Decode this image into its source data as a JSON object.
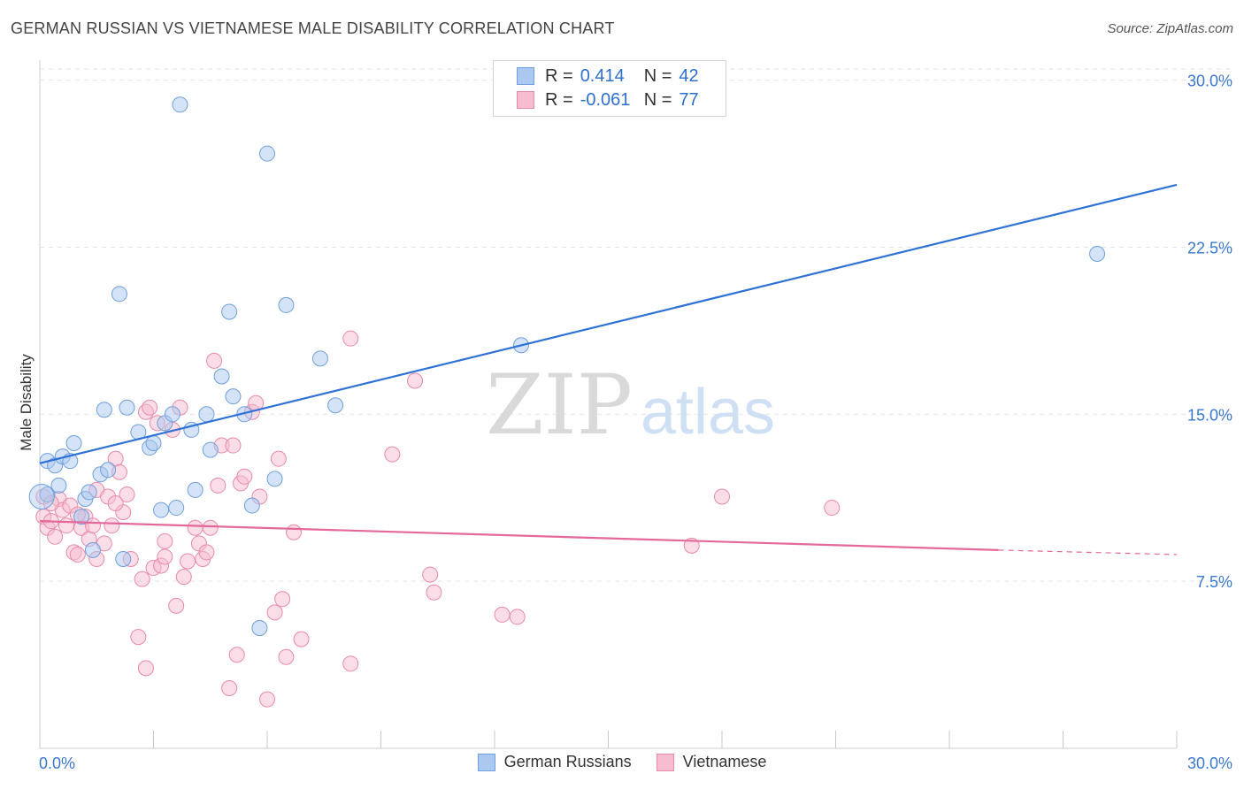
{
  "header": {
    "title": "GERMAN RUSSIAN VS VIETNAMESE MALE DISABILITY CORRELATION CHART",
    "source": "Source: ZipAtlas.com"
  },
  "watermark": {
    "zip": "ZIP",
    "atlas": "atlas"
  },
  "colors": {
    "blue_fill": "#aac8f0",
    "blue_stroke": "#6f9fdc",
    "blue_line": "#2f72d6",
    "pink_fill": "#f8bcd0",
    "pink_stroke": "#e88aaa",
    "pink_line": "#e4689a",
    "tick_label": "#3a78cf",
    "grid": "#e3e3e3"
  },
  "legend": {
    "rows": [
      {
        "r_label": "R =",
        "r_value": "0.414",
        "n_label": "N =",
        "n_value": "42"
      },
      {
        "r_label": "R =",
        "r_value": "-0.061",
        "n_label": "N =",
        "n_value": "77"
      }
    ]
  },
  "bottom_legend": {
    "series1": "German Russians",
    "series2": "Vietnamese"
  },
  "chart_data": {
    "type": "scatter",
    "title": "GERMAN RUSSIAN VS VIETNAMESE MALE DISABILITY CORRELATION CHART",
    "xlabel": "",
    "ylabel": "Male Disability",
    "xlim": [
      0,
      30
    ],
    "ylim": [
      0,
      30.5
    ],
    "x_tick_labels": [
      "0.0%",
      "30.0%"
    ],
    "y_ticks": [
      7.5,
      15.0,
      22.5,
      30.0
    ],
    "y_tick_labels": [
      "7.5%",
      "15.0%",
      "22.5%",
      "30.0%"
    ],
    "series": [
      {
        "name": "German Russians",
        "r": 0.414,
        "n": 42,
        "trend": {
          "x0": 0,
          "y0": 12.8,
          "x1": 30,
          "y1": 25.3
        },
        "points": [
          [
            0.2,
            11.4
          ],
          [
            0.2,
            12.9
          ],
          [
            0.4,
            12.7
          ],
          [
            0.5,
            11.8
          ],
          [
            0.6,
            13.1
          ],
          [
            0.8,
            12.9
          ],
          [
            0.9,
            13.7
          ],
          [
            1.1,
            10.4
          ],
          [
            1.2,
            11.2
          ],
          [
            1.3,
            11.5
          ],
          [
            1.4,
            8.9
          ],
          [
            1.6,
            12.3
          ],
          [
            1.7,
            15.2
          ],
          [
            1.8,
            12.5
          ],
          [
            2.1,
            20.4
          ],
          [
            2.2,
            8.5
          ],
          [
            2.3,
            15.3
          ],
          [
            2.6,
            14.2
          ],
          [
            2.9,
            13.5
          ],
          [
            3.0,
            13.7
          ],
          [
            3.2,
            10.7
          ],
          [
            3.3,
            14.6
          ],
          [
            3.5,
            15.0
          ],
          [
            3.6,
            10.8
          ],
          [
            3.7,
            28.9
          ],
          [
            4.0,
            14.3
          ],
          [
            4.1,
            11.6
          ],
          [
            4.4,
            15.0
          ],
          [
            4.5,
            13.4
          ],
          [
            4.8,
            16.7
          ],
          [
            5.0,
            19.6
          ],
          [
            5.1,
            15.8
          ],
          [
            5.4,
            15.0
          ],
          [
            5.6,
            10.9
          ],
          [
            5.8,
            5.4
          ],
          [
            6.0,
            26.7
          ],
          [
            6.2,
            12.1
          ],
          [
            6.5,
            19.9
          ],
          [
            7.4,
            17.5
          ],
          [
            7.8,
            15.4
          ],
          [
            12.7,
            18.1
          ],
          [
            27.9,
            22.2
          ]
        ]
      },
      {
        "name": "Vietnamese",
        "r": -0.061,
        "n": 77,
        "trend": {
          "x0": 0,
          "y0": 10.2,
          "x1": 25.3,
          "y1": 8.9,
          "x_dash_end": 30,
          "y_dash_end": 8.7
        },
        "points": [
          [
            0.1,
            10.4
          ],
          [
            0.2,
            9.9
          ],
          [
            0.3,
            10.2
          ],
          [
            0.4,
            9.5
          ],
          [
            0.5,
            11.2
          ],
          [
            0.6,
            10.7
          ],
          [
            0.7,
            10.0
          ],
          [
            0.8,
            10.9
          ],
          [
            0.9,
            8.8
          ],
          [
            1.0,
            8.7
          ],
          [
            1.1,
            9.9
          ],
          [
            1.2,
            10.4
          ],
          [
            1.3,
            9.4
          ],
          [
            1.4,
            10.0
          ],
          [
            1.5,
            11.6
          ],
          [
            1.5,
            8.5
          ],
          [
            1.7,
            9.2
          ],
          [
            1.8,
            11.3
          ],
          [
            1.9,
            10.0
          ],
          [
            2.0,
            13.0
          ],
          [
            2.1,
            12.4
          ],
          [
            2.2,
            10.6
          ],
          [
            2.3,
            11.4
          ],
          [
            2.4,
            8.5
          ],
          [
            2.6,
            5.0
          ],
          [
            2.7,
            7.6
          ],
          [
            2.8,
            15.1
          ],
          [
            2.8,
            3.6
          ],
          [
            2.9,
            15.3
          ],
          [
            3.0,
            8.1
          ],
          [
            3.1,
            14.6
          ],
          [
            3.2,
            8.2
          ],
          [
            3.3,
            9.3
          ],
          [
            3.3,
            8.6
          ],
          [
            3.5,
            14.3
          ],
          [
            3.6,
            6.4
          ],
          [
            3.7,
            15.3
          ],
          [
            3.8,
            7.7
          ],
          [
            3.9,
            8.4
          ],
          [
            4.1,
            9.9
          ],
          [
            4.2,
            9.2
          ],
          [
            4.3,
            8.5
          ],
          [
            4.4,
            8.8
          ],
          [
            4.5,
            9.9
          ],
          [
            4.6,
            17.4
          ],
          [
            4.7,
            11.8
          ],
          [
            4.8,
            13.6
          ],
          [
            5.0,
            2.7
          ],
          [
            5.1,
            13.6
          ],
          [
            5.2,
            4.2
          ],
          [
            5.3,
            11.9
          ],
          [
            5.4,
            12.2
          ],
          [
            5.6,
            15.1
          ],
          [
            5.7,
            15.5
          ],
          [
            5.8,
            11.3
          ],
          [
            6.0,
            2.2
          ],
          [
            6.2,
            6.1
          ],
          [
            6.3,
            13.0
          ],
          [
            6.4,
            6.7
          ],
          [
            6.5,
            4.1
          ],
          [
            6.7,
            9.7
          ],
          [
            6.9,
            4.9
          ],
          [
            8.2,
            18.4
          ],
          [
            8.2,
            3.8
          ],
          [
            9.3,
            13.2
          ],
          [
            9.9,
            16.5
          ],
          [
            10.3,
            7.8
          ],
          [
            10.4,
            7.0
          ],
          [
            12.2,
            6.0
          ],
          [
            12.6,
            5.9
          ],
          [
            17.2,
            9.1
          ],
          [
            18.0,
            11.3
          ],
          [
            20.9,
            10.8
          ],
          [
            0.1,
            11.3
          ],
          [
            0.3,
            11.0
          ],
          [
            1.0,
            10.5
          ],
          [
            2.0,
            11.0
          ]
        ]
      }
    ]
  }
}
